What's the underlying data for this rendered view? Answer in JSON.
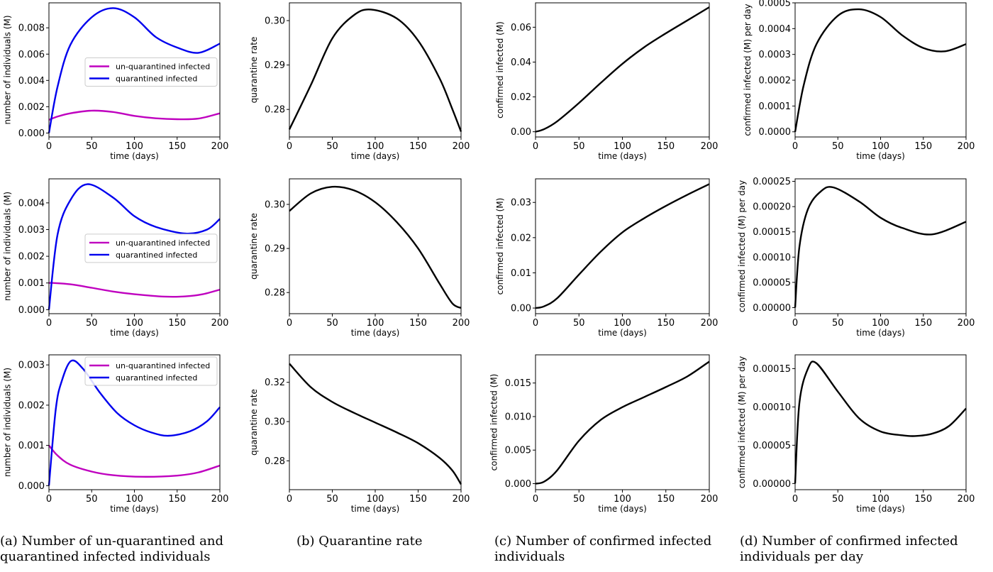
{
  "colors": {
    "unquarantined": "#bf00bf",
    "quarantined": "#0000ee",
    "black": "#000000"
  },
  "captions": [
    {
      "lines": [
        "(a) Number of un-quarantined and",
        "quarantined infected individuals"
      ]
    },
    {
      "lines": [
        "(b) Quarantine rate"
      ]
    },
    {
      "lines": [
        "(c) Number of confirmed infected",
        "individuals"
      ]
    },
    {
      "lines": [
        "(d) Number of confirmed infected",
        "individuals per day"
      ]
    }
  ],
  "chart_data": [
    {
      "type": "line",
      "row": 0,
      "col": 0,
      "xlabel": "time (days)",
      "ylabel": "number of individuals (M)",
      "xlim": [
        0,
        200
      ],
      "ylim": [
        -0.0003,
        0.0099
      ],
      "xticks": [
        0,
        50,
        100,
        150,
        200
      ],
      "xtick_labels": [
        "0",
        "50",
        "100",
        "150",
        "200"
      ],
      "yticks": [
        0,
        0.002,
        0.004,
        0.006,
        0.008
      ],
      "ytick_labels": [
        "0.000",
        "0.002",
        "0.004",
        "0.006",
        "0.008"
      ],
      "legend": "center-right",
      "series": [
        {
          "name": "un-quarantined infected",
          "color": "#bf00bf",
          "x": [
            0,
            10,
            25,
            50,
            75,
            100,
            125,
            150,
            175,
            200
          ],
          "y": [
            0.001,
            0.00125,
            0.0015,
            0.0017,
            0.0016,
            0.0013,
            0.00112,
            0.00105,
            0.0011,
            0.0015
          ]
        },
        {
          "name": "quarantined infected",
          "color": "#0000ee",
          "x": [
            0,
            10,
            25,
            50,
            75,
            100,
            125,
            150,
            175,
            200
          ],
          "y": [
            0,
            0.0035,
            0.0067,
            0.0088,
            0.0095,
            0.0088,
            0.0073,
            0.0065,
            0.0061,
            0.0068
          ]
        }
      ]
    },
    {
      "type": "line",
      "row": 0,
      "col": 1,
      "xlabel": "time (days)",
      "ylabel": "quarantine rate",
      "xlim": [
        0,
        200
      ],
      "ylim": [
        0.2738,
        0.304
      ],
      "xticks": [
        0,
        50,
        100,
        150,
        200
      ],
      "xtick_labels": [
        "0",
        "50",
        "100",
        "150",
        "200"
      ],
      "yticks": [
        0.28,
        0.29,
        0.3
      ],
      "ytick_labels": [
        "0.28",
        "0.29",
        "0.30"
      ],
      "series": [
        {
          "color": "#000000",
          "x": [
            0,
            25,
            50,
            75,
            95,
            125,
            150,
            175,
            190,
            200
          ],
          "y": [
            0.2755,
            0.2855,
            0.296,
            0.3012,
            0.3025,
            0.3005,
            0.2955,
            0.287,
            0.28,
            0.275
          ]
        }
      ]
    },
    {
      "type": "line",
      "row": 0,
      "col": 2,
      "xlabel": "time (days)",
      "ylabel": "confirmed infected (M)",
      "xlim": [
        0,
        200
      ],
      "ylim": [
        -0.003,
        0.074
      ],
      "xticks": [
        0,
        50,
        100,
        150,
        200
      ],
      "xtick_labels": [
        "0",
        "50",
        "100",
        "150",
        "200"
      ],
      "yticks": [
        0,
        0.02,
        0.04,
        0.06
      ],
      "ytick_labels": [
        "0.00",
        "0.02",
        "0.04",
        "0.06"
      ],
      "series": [
        {
          "color": "#000000",
          "x": [
            0,
            10,
            25,
            50,
            75,
            100,
            125,
            150,
            175,
            200
          ],
          "y": [
            0,
            0.0015,
            0.006,
            0.0165,
            0.028,
            0.039,
            0.0485,
            0.0565,
            0.064,
            0.0715
          ]
        }
      ]
    },
    {
      "type": "line",
      "row": 0,
      "col": 3,
      "xlabel": "time (days)",
      "ylabel": "confirmed infected (M) per day",
      "xlim": [
        0,
        200
      ],
      "ylim": [
        -2e-05,
        0.0005
      ],
      "xticks": [
        0,
        50,
        100,
        150,
        200
      ],
      "xtick_labels": [
        "0",
        "50",
        "100",
        "150",
        "200"
      ],
      "yticks": [
        0,
        0.0001,
        0.0002,
        0.0003,
        0.0004,
        0.0005
      ],
      "ytick_labels": [
        "0.0000",
        "0.0001",
        "0.0002",
        "0.0003",
        "0.0004",
        "0.0005"
      ],
      "series": [
        {
          "color": "#000000",
          "x": [
            0,
            10,
            25,
            50,
            75,
            100,
            125,
            150,
            175,
            200
          ],
          "y": [
            0,
            0.00018,
            0.00034,
            0.00045,
            0.000475,
            0.000445,
            0.000375,
            0.000325,
            0.000312,
            0.00034
          ]
        }
      ]
    },
    {
      "type": "line",
      "row": 1,
      "col": 0,
      "xlabel": "time (days)",
      "ylabel": "number of individuals (M)",
      "xlim": [
        0,
        200
      ],
      "ylim": [
        -0.00015,
        0.0049
      ],
      "xticks": [
        0,
        50,
        100,
        150,
        200
      ],
      "xtick_labels": [
        "0",
        "50",
        "100",
        "150",
        "200"
      ],
      "yticks": [
        0,
        0.001,
        0.002,
        0.003,
        0.004
      ],
      "ytick_labels": [
        "0.000",
        "0.001",
        "0.002",
        "0.003",
        "0.004"
      ],
      "legend": "center-right",
      "series": [
        {
          "name": "un-quarantined infected",
          "color": "#bf00bf",
          "x": [
            0,
            5,
            25,
            50,
            75,
            100,
            135,
            160,
            180,
            200
          ],
          "y": [
            0.001,
            0.001,
            0.00095,
            0.00082,
            0.00068,
            0.00058,
            0.00049,
            0.0005,
            0.00058,
            0.00075
          ]
        },
        {
          "name": "quarantined infected",
          "color": "#0000ee",
          "x": [
            0,
            10,
            25,
            45,
            75,
            100,
            125,
            160,
            185,
            200
          ],
          "y": [
            0,
            0.0028,
            0.0041,
            0.0047,
            0.0042,
            0.0035,
            0.0031,
            0.00285,
            0.003,
            0.0034
          ]
        }
      ]
    },
    {
      "type": "line",
      "row": 1,
      "col": 1,
      "xlabel": "time (days)",
      "ylabel": "quarantine rate",
      "xlim": [
        0,
        200
      ],
      "ylim": [
        0.2752,
        0.3058
      ],
      "xticks": [
        0,
        50,
        100,
        150,
        200
      ],
      "xtick_labels": [
        "0",
        "50",
        "100",
        "150",
        "200"
      ],
      "yticks": [
        0.28,
        0.29,
        0.3
      ],
      "ytick_labels": [
        "0.28",
        "0.29",
        "0.30"
      ],
      "series": [
        {
          "color": "#000000",
          "x": [
            0,
            25,
            50,
            75,
            100,
            125,
            150,
            175,
            190,
            200
          ],
          "y": [
            0.2985,
            0.3025,
            0.304,
            0.3032,
            0.3005,
            0.296,
            0.29,
            0.282,
            0.2775,
            0.2765
          ]
        }
      ]
    },
    {
      "type": "line",
      "row": 1,
      "col": 2,
      "xlabel": "time (days)",
      "ylabel": "confirmed infected (M)",
      "xlim": [
        0,
        200
      ],
      "ylim": [
        -0.0016,
        0.0367
      ],
      "xticks": [
        0,
        50,
        100,
        150,
        200
      ],
      "xtick_labels": [
        "0",
        "50",
        "100",
        "150",
        "200"
      ],
      "yticks": [
        0,
        0.01,
        0.02,
        0.03
      ],
      "ytick_labels": [
        "0.00",
        "0.01",
        "0.02",
        "0.03"
      ],
      "series": [
        {
          "color": "#000000",
          "x": [
            0,
            10,
            25,
            50,
            75,
            100,
            125,
            150,
            175,
            200
          ],
          "y": [
            0,
            0.0005,
            0.0028,
            0.0095,
            0.016,
            0.0215,
            0.0255,
            0.029,
            0.0322,
            0.0352
          ]
        }
      ]
    },
    {
      "type": "line",
      "row": 1,
      "col": 3,
      "xlabel": "time (days)",
      "ylabel": "confirmed infected (M) per day",
      "xlim": [
        0,
        200
      ],
      "ylim": [
        -1.2e-05,
        0.000255
      ],
      "xticks": [
        0,
        50,
        100,
        150,
        200
      ],
      "xtick_labels": [
        "0",
        "50",
        "100",
        "150",
        "200"
      ],
      "yticks": [
        0,
        5e-05,
        0.0001,
        0.00015,
        0.0002,
        0.00025
      ],
      "ytick_labels": [
        "0.00000",
        "0.00005",
        "0.00010",
        "0.00015",
        "0.00020",
        "0.00025"
      ],
      "series": [
        {
          "color": "#000000",
          "x": [
            0,
            5,
            15,
            30,
            45,
            75,
            100,
            125,
            160,
            200
          ],
          "y": [
            0,
            0.00012,
            0.000195,
            0.00023,
            0.000238,
            0.00021,
            0.000178,
            0.000158,
            0.000145,
            0.00017
          ]
        }
      ]
    },
    {
      "type": "line",
      "row": 2,
      "col": 0,
      "xlabel": "time (days)",
      "ylabel": "number of individuals (M)",
      "xlim": [
        0,
        200
      ],
      "ylim": [
        -0.0001,
        0.00325
      ],
      "xticks": [
        0,
        50,
        100,
        150,
        200
      ],
      "xtick_labels": [
        "0",
        "50",
        "100",
        "150",
        "200"
      ],
      "yticks": [
        0,
        0.001,
        0.002,
        0.003
      ],
      "ytick_labels": [
        "0.000",
        "0.001",
        "0.002",
        "0.003"
      ],
      "legend": "top-right",
      "series": [
        {
          "name": "un-quarantined infected",
          "color": "#bf00bf",
          "x": [
            0,
            10,
            25,
            50,
            75,
            110,
            150,
            175,
            200
          ],
          "y": [
            0.001,
            0.00075,
            0.00052,
            0.00035,
            0.00026,
            0.00022,
            0.00025,
            0.00033,
            0.0005
          ]
        },
        {
          "name": "quarantined infected",
          "color": "#0000ee",
          "x": [
            0,
            8,
            15,
            26,
            40,
            60,
            80,
            100,
            120,
            140,
            165,
            185,
            200
          ],
          "y": [
            0,
            0.0019,
            0.0026,
            0.0031,
            0.0029,
            0.0023,
            0.0018,
            0.0015,
            0.00132,
            0.00124,
            0.00135,
            0.0016,
            0.00195
          ]
        }
      ]
    },
    {
      "type": "line",
      "row": 2,
      "col": 1,
      "xlabel": "time (days)",
      "ylabel": "quarantine rate",
      "xlim": [
        0,
        200
      ],
      "ylim": [
        0.2653,
        0.334
      ],
      "xticks": [
        0,
        50,
        100,
        150,
        200
      ],
      "xtick_labels": [
        "0",
        "50",
        "100",
        "150",
        "200"
      ],
      "yticks": [
        0.28,
        0.3,
        0.32
      ],
      "ytick_labels": [
        "0.28",
        "0.30",
        "0.32"
      ],
      "series": [
        {
          "color": "#000000",
          "x": [
            0,
            25,
            50,
            75,
            100,
            125,
            150,
            175,
            190,
            200
          ],
          "y": [
            0.3295,
            0.3175,
            0.31,
            0.3045,
            0.2995,
            0.2945,
            0.289,
            0.2815,
            0.275,
            0.268
          ]
        }
      ]
    },
    {
      "type": "line",
      "row": 2,
      "col": 2,
      "xlabel": "time (days)",
      "ylabel": "confirmed infected (M)",
      "xlim": [
        0,
        200
      ],
      "ylim": [
        -0.0009,
        0.0192
      ],
      "xticks": [
        0,
        50,
        100,
        150,
        200
      ],
      "xtick_labels": [
        "0",
        "50",
        "100",
        "150",
        "200"
      ],
      "yticks": [
        0,
        0.005,
        0.01,
        0.015
      ],
      "ytick_labels": [
        "0.000",
        "0.005",
        "0.010",
        "0.015"
      ],
      "series": [
        {
          "color": "#000000",
          "x": [
            0,
            10,
            25,
            50,
            75,
            100,
            125,
            150,
            175,
            200
          ],
          "y": [
            0,
            0.0003,
            0.002,
            0.0064,
            0.0095,
            0.0114,
            0.0129,
            0.0144,
            0.016,
            0.0182
          ]
        }
      ]
    },
    {
      "type": "line",
      "row": 2,
      "col": 3,
      "xlabel": "time (days)",
      "ylabel": "confirmed infected (M) per day",
      "xlim": [
        0,
        200
      ],
      "ylim": [
        -8e-06,
        0.000168
      ],
      "xticks": [
        0,
        50,
        100,
        150,
        200
      ],
      "xtick_labels": [
        "0",
        "50",
        "100",
        "150",
        "200"
      ],
      "yticks": [
        0,
        5e-05,
        0.0001,
        0.00015
      ],
      "ytick_labels": [
        "0.00000",
        "0.00005",
        "0.00010",
        "0.00015"
      ],
      "series": [
        {
          "color": "#000000",
          "x": [
            0,
            5,
            15,
            25,
            50,
            75,
            100,
            125,
            140,
            160,
            180,
            200
          ],
          "y": [
            0,
            0.000105,
            0.00015,
            0.000157,
            0.00012,
            8.5e-05,
            6.8e-05,
            6.3e-05,
            6.2e-05,
            6.5e-05,
            7.5e-05,
            9.8e-05
          ]
        }
      ]
    }
  ]
}
